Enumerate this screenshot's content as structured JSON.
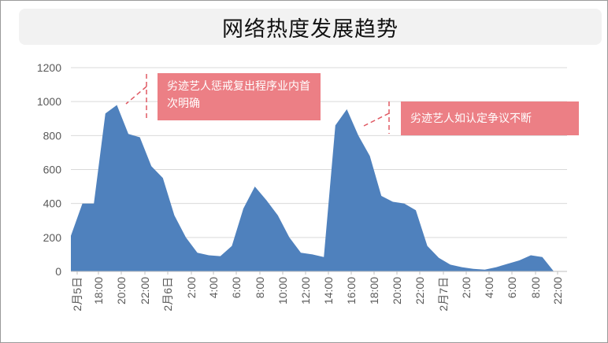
{
  "title": "网络热度发展趋势",
  "annotations": [
    {
      "text": "劣迹艺人惩戒复出程序业内首次明确"
    },
    {
      "text": "劣迹艺人如认定争议不断"
    }
  ],
  "colors": {
    "area": "#4f81bd",
    "annotation": "#ec7f85",
    "dash": "#e05a64",
    "grid": "#d9d9d9",
    "axis_text": "#595959"
  },
  "chart_data": {
    "type": "area",
    "title": "网络热度发展趋势",
    "xlabel": "",
    "ylabel": "",
    "ylim": [
      0,
      1200
    ],
    "yticks": [
      0,
      200,
      400,
      600,
      800,
      1000,
      1200
    ],
    "grid": true,
    "x_tick_labels": [
      "2月5日",
      "18:00",
      "20:00",
      "22:00",
      "2月6日",
      "2:00",
      "4:00",
      "6:00",
      "8:00",
      "10:00",
      "12:00",
      "14:00",
      "16:00",
      "18:00",
      "20:00",
      "22:00",
      "2月7日",
      "2:00",
      "4:00",
      "6:00",
      "8:00",
      "22:00"
    ],
    "series": [
      {
        "values": [
          210,
          400,
          400,
          930,
          980,
          810,
          790,
          620,
          550,
          330,
          200,
          110,
          95,
          90,
          150,
          370,
          500,
          420,
          330,
          200,
          110,
          100,
          85,
          860,
          955,
          800,
          680,
          445,
          410,
          400,
          360,
          150,
          80,
          40,
          25,
          15,
          10,
          25,
          45,
          65,
          95,
          85,
          0
        ]
      }
    ]
  }
}
